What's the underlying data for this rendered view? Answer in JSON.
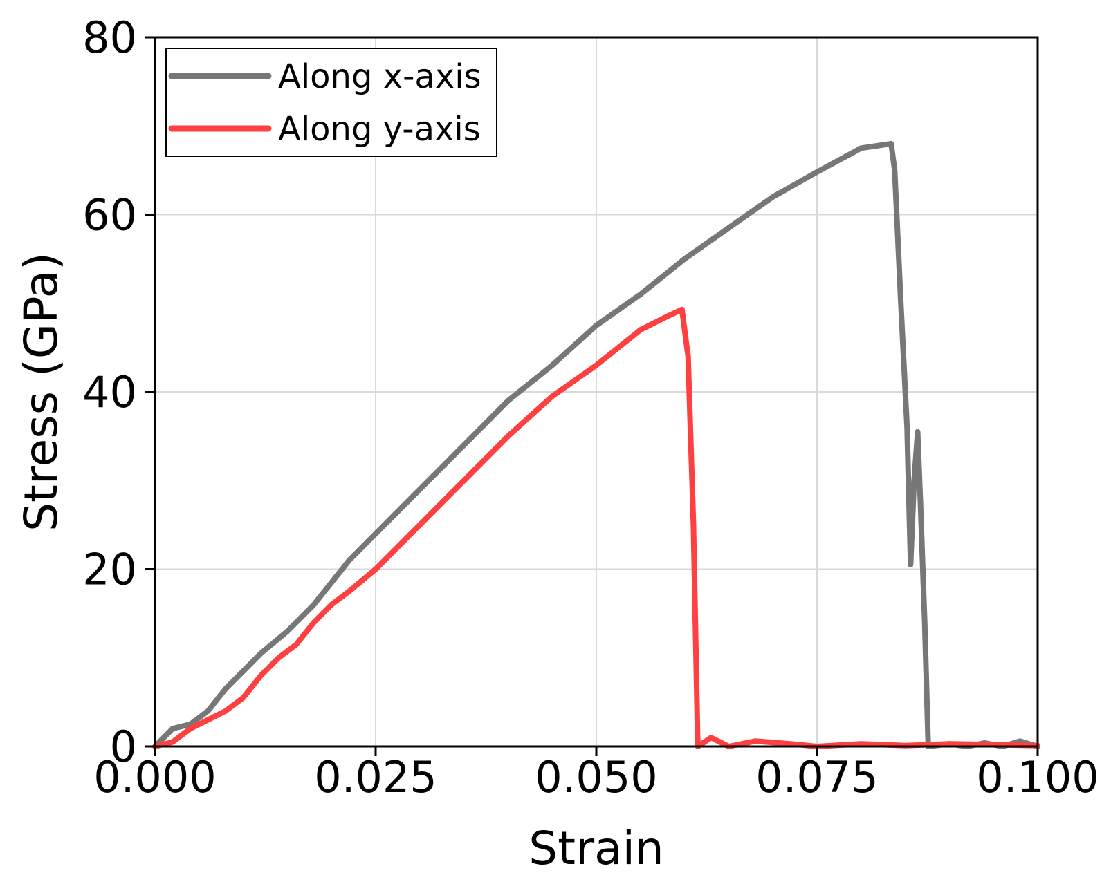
{
  "chart_data": {
    "type": "line",
    "title": "",
    "xlabel": "Strain",
    "ylabel": "Stress (GPa)",
    "xlim": [
      0,
      0.1
    ],
    "ylim": [
      0,
      80
    ],
    "x_ticks": [
      "0.000",
      "0.025",
      "0.050",
      "0.075",
      "0.100"
    ],
    "y_ticks": [
      "0",
      "20",
      "40",
      "60",
      "80"
    ],
    "grid": true,
    "legend_position": "top-left",
    "series": [
      {
        "name": "Along x-axis",
        "color": "#777777",
        "points": [
          [
            0,
            0
          ],
          [
            0.002,
            2
          ],
          [
            0.004,
            2.5
          ],
          [
            0.006,
            4
          ],
          [
            0.008,
            6.5
          ],
          [
            0.01,
            8.5
          ],
          [
            0.012,
            10.5
          ],
          [
            0.015,
            13
          ],
          [
            0.018,
            16
          ],
          [
            0.02,
            18.5
          ],
          [
            0.022,
            21
          ],
          [
            0.025,
            24
          ],
          [
            0.03,
            29
          ],
          [
            0.035,
            34
          ],
          [
            0.04,
            39
          ],
          [
            0.045,
            43
          ],
          [
            0.05,
            47.5
          ],
          [
            0.055,
            51
          ],
          [
            0.06,
            55
          ],
          [
            0.065,
            58.5
          ],
          [
            0.07,
            62
          ],
          [
            0.075,
            64.8
          ],
          [
            0.08,
            67.5
          ],
          [
            0.0834,
            68
          ],
          [
            0.0838,
            65
          ],
          [
            0.0845,
            50
          ],
          [
            0.0852,
            36
          ],
          [
            0.0856,
            20.5
          ],
          [
            0.086,
            30
          ],
          [
            0.0864,
            35.5
          ],
          [
            0.0867,
            28
          ],
          [
            0.0872,
            14
          ],
          [
            0.0876,
            0
          ],
          [
            0.09,
            0.3
          ],
          [
            0.092,
            0
          ],
          [
            0.094,
            0.4
          ],
          [
            0.096,
            0
          ],
          [
            0.098,
            0.6
          ],
          [
            0.1,
            0
          ]
        ]
      },
      {
        "name": "Along y-axis",
        "color": "#ff4040",
        "points": [
          [
            0,
            0
          ],
          [
            0.002,
            0.5
          ],
          [
            0.004,
            2
          ],
          [
            0.006,
            3
          ],
          [
            0.008,
            4
          ],
          [
            0.01,
            5.5
          ],
          [
            0.012,
            8
          ],
          [
            0.014,
            10
          ],
          [
            0.016,
            11.5
          ],
          [
            0.018,
            14
          ],
          [
            0.02,
            16
          ],
          [
            0.022,
            17.5
          ],
          [
            0.025,
            20
          ],
          [
            0.03,
            25
          ],
          [
            0.035,
            30
          ],
          [
            0.04,
            35
          ],
          [
            0.045,
            39.5
          ],
          [
            0.05,
            43
          ],
          [
            0.055,
            47
          ],
          [
            0.058,
            48.5
          ],
          [
            0.0597,
            49.3
          ],
          [
            0.0604,
            44
          ],
          [
            0.061,
            25
          ],
          [
            0.0615,
            0
          ],
          [
            0.063,
            1
          ],
          [
            0.065,
            0
          ],
          [
            0.068,
            0.6
          ],
          [
            0.072,
            0.3
          ],
          [
            0.075,
            0
          ],
          [
            0.08,
            0.3
          ],
          [
            0.085,
            0.1
          ],
          [
            0.09,
            0.3
          ],
          [
            0.095,
            0.2
          ],
          [
            0.1,
            0.1
          ]
        ]
      }
    ]
  }
}
